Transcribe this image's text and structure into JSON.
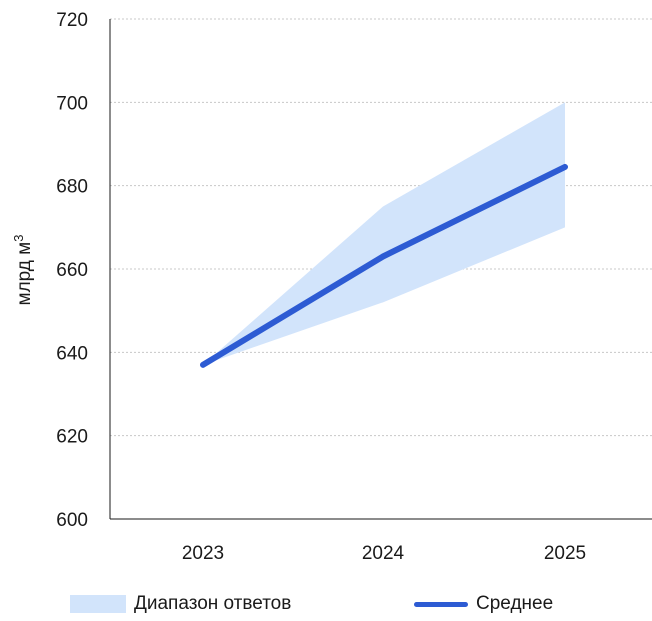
{
  "chart_data": {
    "type": "line",
    "categories": [
      "2023",
      "2024",
      "2025"
    ],
    "ylabel": "млрд м",
    "ylabel_sup": "3",
    "ylim": [
      600,
      720
    ],
    "yticks": [
      600,
      620,
      640,
      660,
      680,
      700,
      720
    ],
    "ytick_labels": [
      "600",
      "620",
      "640",
      "660",
      "680",
      "700",
      "720"
    ],
    "grid": "horizontal dotted",
    "legend_position": "bottom",
    "series": [
      {
        "name": "Среднее",
        "type": "line",
        "values": [
          637,
          663,
          684.5
        ],
        "color": "#2d5bd3"
      }
    ],
    "band": {
      "name": "Диапазон ответов",
      "low": [
        637,
        652,
        670
      ],
      "high": [
        637,
        675,
        700
      ],
      "color": "#d2e4fb"
    }
  }
}
